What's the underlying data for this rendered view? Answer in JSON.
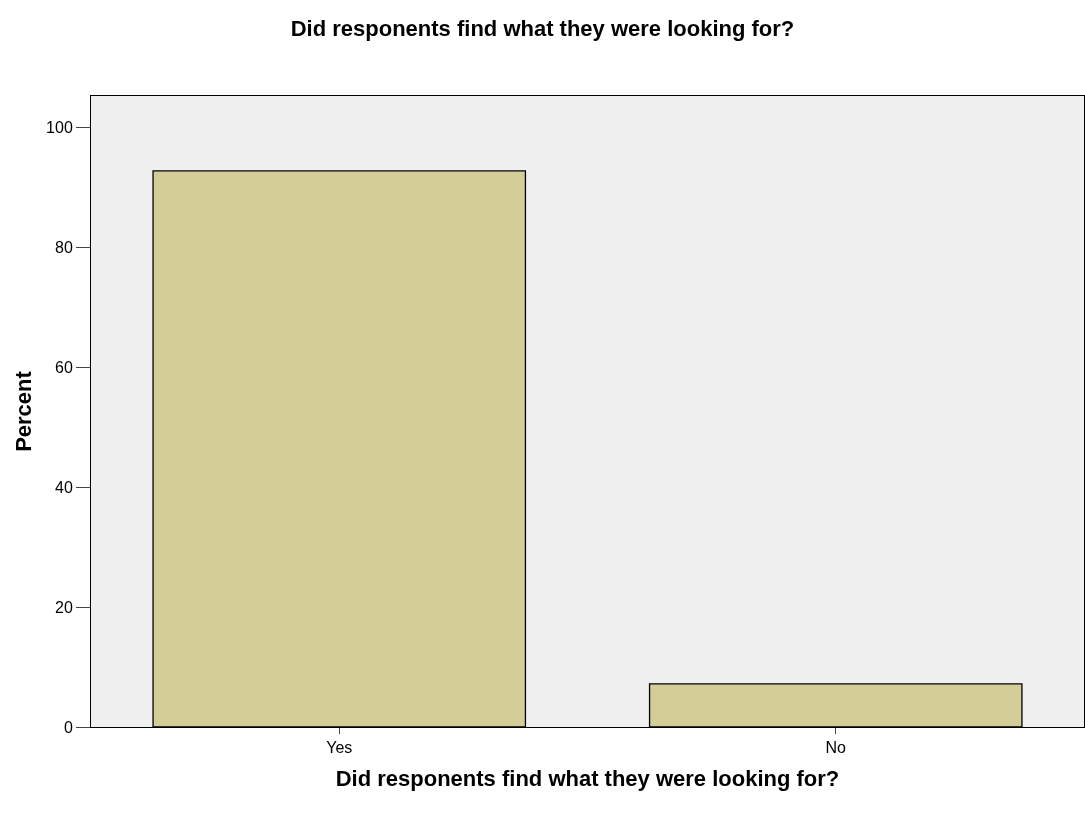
{
  "chart_data": {
    "type": "bar",
    "title": "Did responents find what they were looking for?",
    "xlabel": "Did responents find what they were looking for?",
    "ylabel": "Percent",
    "categories": [
      "Yes",
      "No"
    ],
    "values": [
      92.8,
      7.2
    ],
    "color": "#d3ce98",
    "ylim": [
      0,
      105.3
    ],
    "yticks": [
      0,
      20,
      40,
      60,
      80,
      100
    ],
    "grid": false,
    "legend": false
  }
}
